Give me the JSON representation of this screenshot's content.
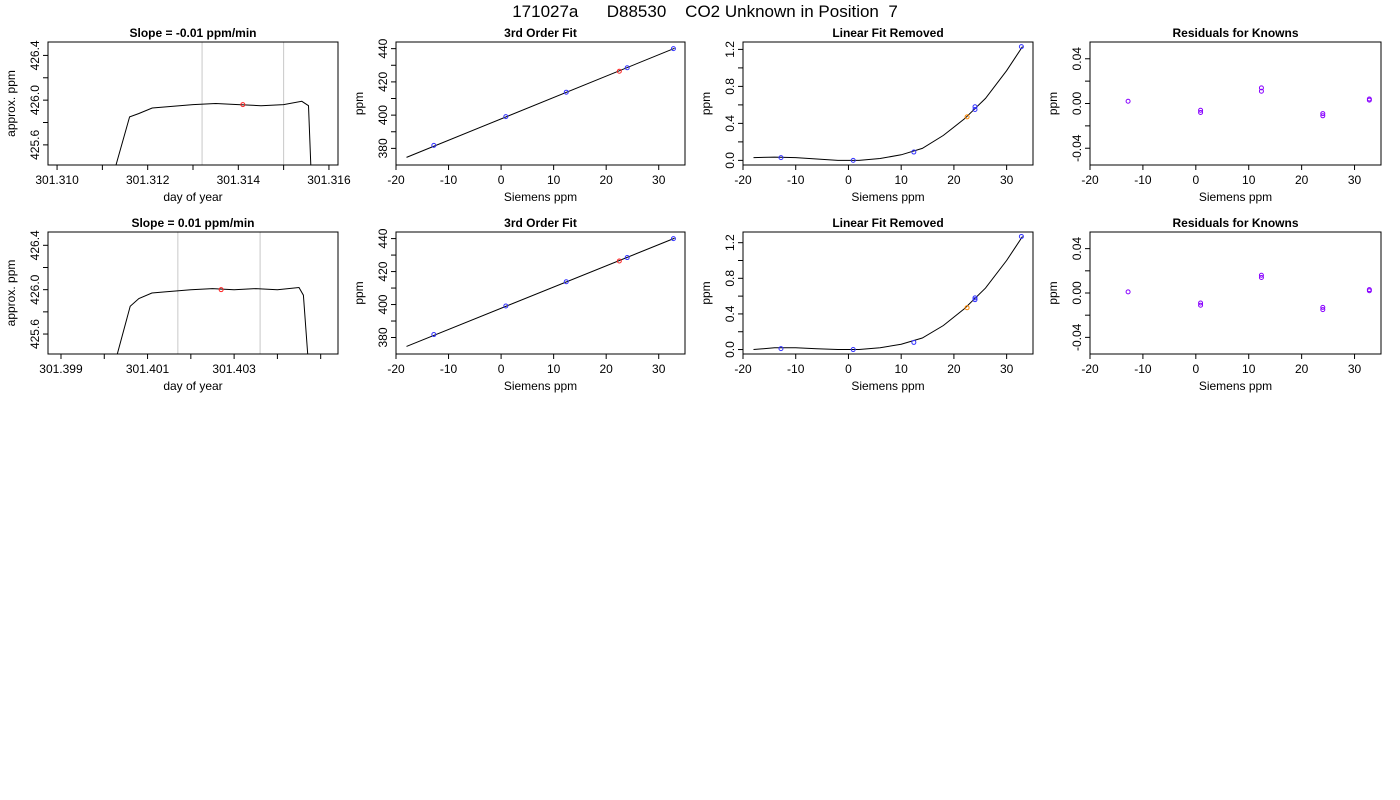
{
  "figure_title": "171027a      D88530    CO2 Unknown in Position  7",
  "colors": {
    "known": "#3333ff",
    "unknown": "#ff2222",
    "unknown_linear": "#ff8800",
    "residual": "#8800ff",
    "line": "#000000",
    "vline": "#c8c8c8"
  },
  "chart_data": [
    {
      "type": "line",
      "title": "Slope =  -0.01  ppm/min",
      "xlabel": "day of year",
      "ylabel": "approx. ppm",
      "xlim": [
        301.3098,
        301.3162
      ],
      "ylim": [
        425.42,
        426.52
      ],
      "xticks": [
        301.31,
        301.311,
        301.312,
        301.313,
        301.314,
        301.315,
        301.316
      ],
      "xtick_labels": [
        "301.310",
        "",
        "301.312",
        "",
        "301.314",
        "",
        "301.316"
      ],
      "yticks": [
        425.6,
        425.8,
        426.0,
        426.2,
        426.4
      ],
      "ytick_labels": [
        "425.6",
        "",
        "426.0",
        "",
        "426.4"
      ],
      "vlines": [
        301.3132,
        301.315
      ],
      "series": [
        {
          "x": [
            301.3113,
            301.3116,
            301.3118,
            301.3121,
            301.3124,
            301.313,
            301.3135,
            301.314,
            301.3145,
            301.315,
            301.3154,
            301.31555,
            301.3156
          ],
          "y": [
            425.42,
            425.85,
            425.88,
            425.93,
            425.94,
            425.96,
            425.97,
            425.96,
            425.95,
            425.96,
            425.99,
            425.95,
            425.42
          ]
        }
      ],
      "points": [
        {
          "x": 301.3141,
          "y": 425.96,
          "kind": "unknown"
        }
      ]
    },
    {
      "type": "scatter",
      "title": "3rd Order Fit",
      "xlabel": "Siemens ppm",
      "ylabel": "ppm",
      "xlim": [
        -20,
        35
      ],
      "ylim": [
        370,
        444
      ],
      "xticks": [
        -20,
        -10,
        0,
        10,
        20,
        30
      ],
      "xtick_labels": [
        "-20",
        "-10",
        "0",
        "10",
        "20",
        "30"
      ],
      "yticks": [
        380,
        390,
        400,
        410,
        420,
        430,
        440
      ],
      "ytick_labels": [
        "380",
        "",
        "400",
        "",
        "420",
        "",
        "440"
      ],
      "fit_line": {
        "x": [
          -18,
          33
        ],
        "y": [
          374.6,
          440.2
        ]
      },
      "points": [
        {
          "x": -12.8,
          "y": 381.8,
          "kind": "known"
        },
        {
          "x": 0.9,
          "y": 399.1,
          "kind": "known"
        },
        {
          "x": 12.4,
          "y": 413.8,
          "kind": "known"
        },
        {
          "x": 24.0,
          "y": 428.5,
          "kind": "known"
        },
        {
          "x": 32.8,
          "y": 440.0,
          "kind": "known"
        },
        {
          "x": 22.5,
          "y": 426.4,
          "kind": "unknown"
        }
      ]
    },
    {
      "type": "scatter",
      "title": "Linear Fit Removed",
      "xlabel": "Siemens ppm",
      "ylabel": "ppm",
      "xlim": [
        -20,
        35
      ],
      "ylim": [
        -0.05,
        1.28
      ],
      "xticks": [
        -20,
        -10,
        0,
        10,
        20,
        30
      ],
      "xtick_labels": [
        "-20",
        "-10",
        "0",
        "10",
        "20",
        "30"
      ],
      "yticks": [
        0.0,
        0.2,
        0.4,
        0.6,
        0.8,
        1.0,
        1.2
      ],
      "ytick_labels": [
        "0.0",
        "",
        "0.4",
        "",
        "0.8",
        "",
        "1.2"
      ],
      "curve": {
        "x": [
          -18,
          -14,
          -10,
          -6,
          -2,
          2,
          6,
          10,
          14,
          18,
          22,
          26,
          30,
          33
        ],
        "y": [
          0.03,
          0.035,
          0.03,
          0.015,
          0.0,
          0.0,
          0.02,
          0.06,
          0.13,
          0.27,
          0.45,
          0.67,
          0.97,
          1.23
        ]
      },
      "points": [
        {
          "x": -12.8,
          "y": 0.03,
          "kind": "known"
        },
        {
          "x": 0.9,
          "y": 0.0,
          "kind": "known"
        },
        {
          "x": 12.4,
          "y": 0.09,
          "kind": "known"
        },
        {
          "x": 24.0,
          "y": 0.55,
          "kind": "known"
        },
        {
          "x": 24.0,
          "y": 0.58,
          "kind": "known"
        },
        {
          "x": 32.8,
          "y": 1.23,
          "kind": "known"
        },
        {
          "x": 22.5,
          "y": 0.47,
          "kind": "unknown_linear"
        }
      ]
    },
    {
      "type": "scatter",
      "title": "Residuals for Knowns",
      "xlabel": "Siemens ppm",
      "ylabel": "ppm",
      "xlim": [
        -20,
        35
      ],
      "ylim": [
        -0.055,
        0.055
      ],
      "xticks": [
        -20,
        -10,
        0,
        10,
        20,
        30
      ],
      "xtick_labels": [
        "-20",
        "-10",
        "0",
        "10",
        "20",
        "30"
      ],
      "yticks": [
        -0.04,
        -0.02,
        0.0,
        0.02,
        0.04
      ],
      "ytick_labels": [
        "-0.04",
        "",
        "0.00",
        "",
        "0.04"
      ],
      "points": [
        {
          "x": -12.8,
          "y": 0.002,
          "kind": "residual"
        },
        {
          "x": 0.9,
          "y": -0.006,
          "kind": "residual"
        },
        {
          "x": 0.9,
          "y": -0.008,
          "kind": "residual"
        },
        {
          "x": 12.4,
          "y": 0.014,
          "kind": "residual"
        },
        {
          "x": 12.4,
          "y": 0.011,
          "kind": "residual"
        },
        {
          "x": 24.0,
          "y": -0.009,
          "kind": "residual"
        },
        {
          "x": 24.0,
          "y": -0.011,
          "kind": "residual"
        },
        {
          "x": 32.8,
          "y": 0.004,
          "kind": "residual"
        },
        {
          "x": 32.8,
          "y": 0.003,
          "kind": "residual"
        }
      ]
    },
    {
      "type": "line",
      "title": "Slope =  0.01  ppm/min",
      "xlabel": "day of year",
      "ylabel": "approx. ppm",
      "xlim": [
        301.3987,
        301.4054
      ],
      "ylim": [
        425.42,
        426.52
      ],
      "xticks": [
        301.399,
        301.4,
        301.401,
        301.402,
        301.403,
        301.404,
        301.405
      ],
      "xtick_labels": [
        "301.399",
        "",
        "301.401",
        "",
        "301.403",
        "",
        ""
      ],
      "yticks": [
        425.6,
        425.8,
        426.0,
        426.2,
        426.4
      ],
      "ytick_labels": [
        "425.6",
        "",
        "426.0",
        "",
        "426.4"
      ],
      "vlines": [
        301.4017,
        301.4036
      ],
      "series": [
        {
          "x": [
            301.4003,
            301.4006,
            301.4008,
            301.4011,
            301.4014,
            301.402,
            301.4025,
            301.403,
            301.4035,
            301.404,
            301.4045,
            301.4046,
            301.4047
          ],
          "y": [
            425.42,
            425.85,
            425.92,
            425.97,
            425.98,
            426.0,
            426.01,
            426.0,
            426.01,
            426.0,
            426.02,
            425.95,
            425.42
          ]
        }
      ],
      "points": [
        {
          "x": 301.4027,
          "y": 426.0,
          "kind": "unknown"
        }
      ]
    },
    {
      "type": "scatter",
      "title": "3rd Order Fit",
      "xlabel": "Siemens ppm",
      "ylabel": "ppm",
      "xlim": [
        -20,
        35
      ],
      "ylim": [
        370,
        444
      ],
      "xticks": [
        -20,
        -10,
        0,
        10,
        20,
        30
      ],
      "xtick_labels": [
        "-20",
        "-10",
        "0",
        "10",
        "20",
        "30"
      ],
      "yticks": [
        380,
        390,
        400,
        410,
        420,
        430,
        440
      ],
      "ytick_labels": [
        "380",
        "",
        "400",
        "",
        "420",
        "",
        "440"
      ],
      "fit_line": {
        "x": [
          -18,
          33
        ],
        "y": [
          374.6,
          440.2
        ]
      },
      "points": [
        {
          "x": -12.8,
          "y": 381.8,
          "kind": "known"
        },
        {
          "x": 0.9,
          "y": 399.1,
          "kind": "known"
        },
        {
          "x": 12.4,
          "y": 413.8,
          "kind": "known"
        },
        {
          "x": 24.0,
          "y": 428.5,
          "kind": "known"
        },
        {
          "x": 32.8,
          "y": 440.0,
          "kind": "known"
        },
        {
          "x": 22.5,
          "y": 426.4,
          "kind": "unknown"
        }
      ]
    },
    {
      "type": "scatter",
      "title": "Linear Fit Removed",
      "xlabel": "Siemens ppm",
      "ylabel": "ppm",
      "xlim": [
        -20,
        35
      ],
      "ylim": [
        -0.05,
        1.32
      ],
      "xticks": [
        -20,
        -10,
        0,
        10,
        20,
        30
      ],
      "xtick_labels": [
        "-20",
        "-10",
        "0",
        "10",
        "20",
        "30"
      ],
      "yticks": [
        0.0,
        0.2,
        0.4,
        0.6,
        0.8,
        1.0,
        1.2
      ],
      "ytick_labels": [
        "0.0",
        "",
        "0.4",
        "",
        "0.8",
        "",
        "1.2"
      ],
      "curve": {
        "x": [
          -18,
          -14,
          -10,
          -6,
          -2,
          2,
          6,
          10,
          14,
          18,
          22,
          26,
          30,
          33
        ],
        "y": [
          0.0,
          0.02,
          0.02,
          0.01,
          0.0,
          0.0,
          0.02,
          0.06,
          0.13,
          0.27,
          0.46,
          0.69,
          1.0,
          1.27
        ]
      },
      "points": [
        {
          "x": -12.8,
          "y": 0.01,
          "kind": "known"
        },
        {
          "x": 0.9,
          "y": 0.0,
          "kind": "known"
        },
        {
          "x": 12.4,
          "y": 0.08,
          "kind": "known"
        },
        {
          "x": 24.0,
          "y": 0.56,
          "kind": "known"
        },
        {
          "x": 24.0,
          "y": 0.58,
          "kind": "known"
        },
        {
          "x": 32.8,
          "y": 1.27,
          "kind": "known"
        },
        {
          "x": 22.5,
          "y": 0.47,
          "kind": "unknown_linear"
        }
      ]
    },
    {
      "type": "scatter",
      "title": "Residuals for Knowns",
      "xlabel": "Siemens ppm",
      "ylabel": "ppm",
      "xlim": [
        -20,
        35
      ],
      "ylim": [
        -0.055,
        0.055
      ],
      "xticks": [
        -20,
        -10,
        0,
        10,
        20,
        30
      ],
      "xtick_labels": [
        "-20",
        "-10",
        "0",
        "10",
        "20",
        "30"
      ],
      "yticks": [
        -0.04,
        -0.02,
        0.0,
        0.02,
        0.04
      ],
      "ytick_labels": [
        "-0.04",
        "",
        "0.00",
        "",
        "0.04"
      ],
      "points": [
        {
          "x": -12.8,
          "y": 0.001,
          "kind": "residual"
        },
        {
          "x": 0.9,
          "y": -0.009,
          "kind": "residual"
        },
        {
          "x": 0.9,
          "y": -0.011,
          "kind": "residual"
        },
        {
          "x": 12.4,
          "y": 0.016,
          "kind": "residual"
        },
        {
          "x": 12.4,
          "y": 0.014,
          "kind": "residual"
        },
        {
          "x": 24.0,
          "y": -0.013,
          "kind": "residual"
        },
        {
          "x": 24.0,
          "y": -0.015,
          "kind": "residual"
        },
        {
          "x": 32.8,
          "y": 0.003,
          "kind": "residual"
        },
        {
          "x": 32.8,
          "y": 0.002,
          "kind": "residual"
        }
      ]
    }
  ]
}
